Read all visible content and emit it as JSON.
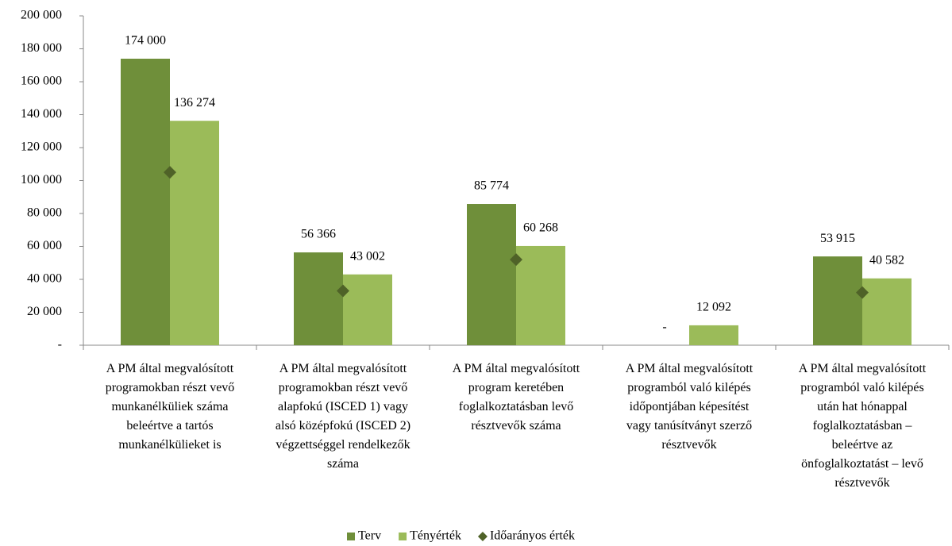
{
  "chart_data": {
    "type": "bar",
    "categories": [
      "A PM által megvalósított\nprogramokban részt vevő\nmunkanélküliek száma\nbeleértve a tartós\nmunkanélkülieket is",
      "A PM által megvalósított\nprogramokban részt vevő\nalapfokú (ISCED 1) vagy\nalsó középfokú (ISCED 2)\nvégzettséggel rendelkezők\nszáma",
      "A PM által megvalósított\nprogram keretében\nfoglalkoztatásban levő\nrésztvevők száma",
      "A PM által megvalósított\nprogramból való kilépés\nidőpontjában képesítést\nvagy tanúsítványt szerző\nrésztvevők",
      "A PM által megvalósított\nprogramból való kilépés\nután hat hónappal\nfoglalkoztatásban –\nbeleértve az\nönfoglalkoztatást – levő\nrésztvevők"
    ],
    "series": [
      {
        "name": "Terv",
        "color": "#6f8f3a",
        "values": [
          174000,
          56366,
          85774,
          0,
          53915
        ],
        "value_labels": [
          "174 000",
          "56 366",
          "85 774",
          "-",
          "53 915"
        ]
      },
      {
        "name": "Tényérték",
        "color": "#9bbb59",
        "values": [
          136274,
          43002,
          60268,
          12092,
          40582
        ],
        "value_labels": [
          "136 274",
          "43 002",
          "60 268",
          "12 092",
          "40 582"
        ]
      },
      {
        "name": "Időarányos érték",
        "color": "#4f6228",
        "marker": "diamond",
        "values": [
          105000,
          33000,
          52000,
          null,
          32000
        ]
      }
    ],
    "ylim": [
      0,
      200000
    ],
    "yticks": [
      {
        "value": 0,
        "label": "-"
      },
      {
        "value": 20000,
        "label": "20 000"
      },
      {
        "value": 40000,
        "label": "40 000"
      },
      {
        "value": 60000,
        "label": "60 000"
      },
      {
        "value": 80000,
        "label": "80 000"
      },
      {
        "value": 100000,
        "label": "100 000"
      },
      {
        "value": 120000,
        "label": "120 000"
      },
      {
        "value": 140000,
        "label": "140 000"
      },
      {
        "value": 160000,
        "label": "160 000"
      },
      {
        "value": 180000,
        "label": "180 000"
      },
      {
        "value": 200000,
        "label": "200 000"
      }
    ],
    "grid": false,
    "legend": "bottom"
  }
}
